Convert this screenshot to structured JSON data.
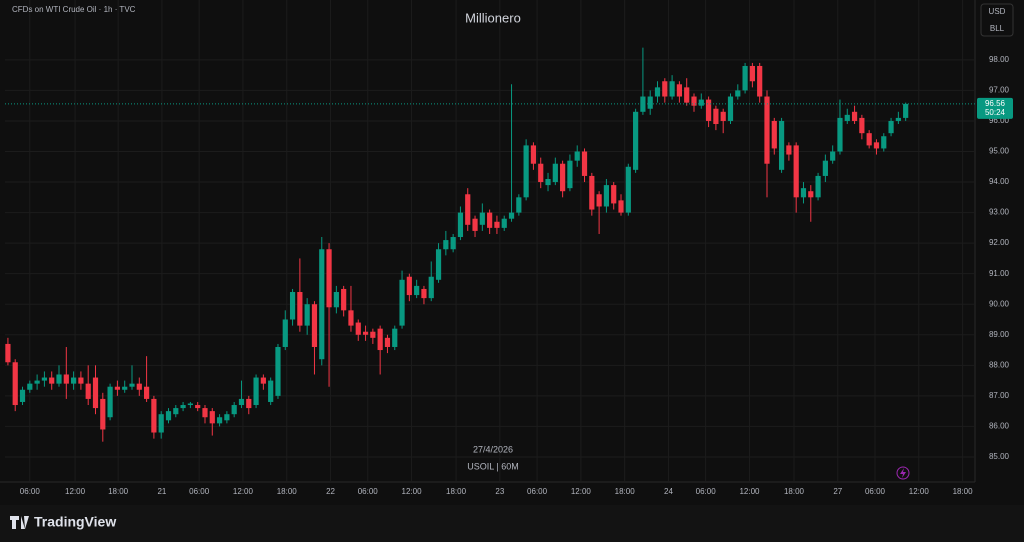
{
  "header": {
    "symbol_title": "CFDs on WTI Crude Oil · 1h · TVC",
    "watermark": "Millionero",
    "currency": "USD",
    "unit": "BLL",
    "date_label": "27/4/2026",
    "symbol_label": "USOIL | 60M",
    "brand": "TradingView"
  },
  "chart_data": {
    "type": "candlestick",
    "up_color": "#089981",
    "down_color": "#f23645",
    "grid": true,
    "open": [
      88.7,
      88.1,
      86.8,
      87.2,
      87.4,
      87.5,
      87.6,
      87.4,
      87.7,
      87.4,
      87.6,
      87.4,
      87.6,
      86.9,
      86.3,
      87.3,
      87.2,
      87.3,
      87.4,
      87.3,
      86.9,
      85.8,
      86.2,
      86.4,
      86.6,
      86.7,
      86.7,
      86.6,
      86.5,
      86.1,
      86.2,
      86.4,
      86.7,
      86.9,
      86.7,
      87.6,
      86.8,
      87.0,
      88.6,
      89.5,
      90.4,
      89.3,
      90.0,
      88.2,
      91.8,
      89.9,
      90.5,
      89.8,
      89.4,
      89.1,
      89.1,
      89.2,
      88.9,
      88.6,
      89.3,
      90.9,
      90.3,
      90.5,
      90.2,
      90.8,
      91.8,
      91.8,
      92.2,
      93.6,
      92.8,
      92.6,
      93.0,
      92.7,
      92.5,
      92.8,
      93.0,
      93.5,
      95.2,
      94.6,
      93.9,
      94.0,
      94.6,
      93.8,
      94.7,
      95.0,
      94.2,
      93.6,
      93.2,
      93.9,
      93.4,
      93.0,
      94.4,
      96.3,
      96.4,
      96.8,
      97.3,
      96.8,
      97.2,
      97.1,
      96.8,
      96.5,
      96.7,
      96.4,
      96.3,
      96.0,
      96.8,
      97.0,
      97.8,
      97.8,
      96.8,
      96.0,
      94.4,
      95.2,
      95.2,
      93.5,
      93.7,
      93.5,
      94.2,
      94.7,
      95.0,
      96.0,
      96.3,
      96.1,
      95.6,
      95.3,
      95.1,
      95.6,
      96.0,
      96.1
    ],
    "high": [
      88.9,
      88.2,
      87.3,
      87.5,
      87.7,
      87.8,
      87.8,
      88.0,
      88.6,
      87.8,
      87.8,
      88.0,
      88.0,
      87.1,
      87.4,
      87.5,
      87.5,
      88.0,
      87.6,
      88.3,
      87.0,
      86.5,
      86.6,
      86.7,
      86.8,
      86.8,
      86.8,
      86.7,
      86.6,
      86.4,
      86.5,
      86.8,
      87.5,
      87.0,
      87.7,
      87.7,
      87.6,
      88.7,
      89.8,
      90.5,
      91.5,
      90.2,
      90.1,
      92.2,
      92.0,
      90.6,
      90.6,
      90.6,
      89.5,
      89.3,
      89.2,
      89.3,
      89.0,
      89.3,
      91.1,
      91.0,
      90.8,
      90.6,
      91.4,
      92.0,
      92.4,
      92.3,
      93.2,
      93.8,
      92.9,
      93.3,
      93.1,
      92.9,
      92.9,
      97.2,
      93.6,
      95.4,
      95.3,
      94.8,
      94.3,
      94.8,
      94.7,
      94.9,
      95.2,
      95.1,
      94.3,
      93.7,
      94.1,
      94.0,
      93.6,
      94.6,
      96.4,
      98.4,
      97.0,
      97.3,
      97.4,
      97.5,
      97.3,
      97.4,
      96.9,
      96.9,
      96.8,
      96.5,
      96.4,
      96.9,
      97.2,
      97.9,
      97.9,
      97.9,
      97.0,
      96.1,
      96.1,
      95.3,
      95.3,
      94.0,
      93.9,
      94.3,
      94.9,
      95.2,
      96.7,
      96.4,
      96.5,
      96.2,
      95.7,
      95.4,
      95.6,
      96.1,
      96.3,
      96.6
    ],
    "low": [
      88.0,
      86.5,
      86.7,
      87.1,
      87.2,
      87.3,
      87.2,
      87.3,
      86.9,
      87.2,
      87.2,
      86.7,
      86.4,
      85.5,
      86.2,
      87.0,
      87.1,
      87.2,
      87.0,
      86.8,
      85.6,
      85.6,
      86.1,
      86.3,
      86.5,
      86.6,
      86.5,
      86.1,
      85.7,
      86.0,
      86.1,
      86.3,
      86.6,
      86.4,
      86.6,
      87.2,
      86.7,
      86.9,
      88.5,
      89.3,
      89.1,
      89.0,
      87.7,
      88.0,
      87.3,
      89.7,
      89.6,
      89.1,
      88.8,
      88.8,
      88.7,
      87.7,
      88.4,
      88.5,
      89.2,
      90.1,
      90.2,
      90.0,
      90.1,
      90.7,
      91.6,
      91.7,
      92.1,
      92.4,
      92.2,
      92.4,
      92.3,
      92.3,
      92.4,
      92.7,
      92.9,
      93.4,
      94.4,
      93.8,
      93.7,
      93.9,
      93.5,
      93.7,
      94.5,
      94.0,
      92.9,
      92.3,
      93.0,
      93.1,
      92.9,
      92.9,
      94.3,
      96.2,
      96.2,
      96.6,
      96.6,
      96.7,
      96.6,
      96.5,
      96.3,
      96.4,
      95.8,
      95.7,
      95.6,
      95.9,
      96.7,
      96.9,
      97.1,
      96.6,
      93.5,
      94.9,
      94.3,
      94.7,
      93.0,
      93.3,
      92.7,
      93.4,
      94.0,
      94.6,
      94.9,
      95.9,
      95.9,
      95.4,
      95.1,
      94.9,
      95.0,
      95.5,
      95.9,
      96.0
    ],
    "close": [
      88.1,
      86.7,
      87.2,
      87.4,
      87.5,
      87.6,
      87.4,
      87.7,
      87.4,
      87.6,
      87.4,
      86.9,
      86.6,
      85.9,
      87.3,
      87.2,
      87.3,
      87.4,
      87.2,
      86.9,
      85.8,
      86.4,
      86.5,
      86.6,
      86.7,
      86.75,
      86.6,
      86.3,
      86.1,
      86.3,
      86.4,
      86.7,
      86.9,
      86.6,
      87.6,
      87.4,
      87.5,
      88.6,
      89.5,
      90.4,
      89.3,
      90.0,
      88.6,
      91.8,
      89.9,
      90.4,
      89.8,
      89.3,
      89.0,
      89.0,
      88.9,
      88.5,
      88.6,
      89.2,
      90.8,
      90.3,
      90.6,
      90.2,
      90.9,
      91.8,
      92.1,
      92.2,
      93.0,
      92.6,
      92.4,
      93.0,
      92.5,
      92.5,
      92.8,
      93.0,
      93.5,
      95.2,
      94.6,
      94.0,
      94.1,
      94.6,
      93.7,
      94.7,
      95.0,
      94.2,
      93.1,
      93.2,
      93.9,
      93.3,
      93.0,
      94.5,
      96.3,
      96.8,
      96.8,
      97.1,
      96.8,
      97.3,
      96.8,
      96.6,
      96.5,
      96.7,
      96.0,
      95.9,
      96.0,
      96.8,
      97.0,
      97.8,
      97.3,
      96.8,
      94.6,
      95.1,
      96.0,
      94.9,
      93.5,
      93.8,
      93.5,
      94.2,
      94.7,
      95.0,
      96.1,
      96.2,
      96.0,
      95.6,
      95.2,
      95.1,
      95.5,
      96.0,
      96.1,
      96.56
    ],
    "last_price": {
      "value": 96.56,
      "label": "96.56"
    },
    "countdown": "50:24",
    "xlim": [
      -0.4,
      132.5
    ],
    "xticks": [
      {
        "value": 3,
        "label": "06:00"
      },
      {
        "value": 9.2,
        "label": "12:00"
      },
      {
        "value": 15.1,
        "label": "18:00"
      },
      {
        "value": 21.1,
        "label": "21"
      },
      {
        "value": 26.2,
        "label": "06:00"
      },
      {
        "value": 32.2,
        "label": "12:00"
      },
      {
        "value": 38.2,
        "label": "18:00"
      },
      {
        "value": 44.2,
        "label": "22"
      },
      {
        "value": 49.3,
        "label": "06:00"
      },
      {
        "value": 55.3,
        "label": "12:00"
      },
      {
        "value": 61.4,
        "label": "18:00"
      },
      {
        "value": 67.4,
        "label": "23"
      },
      {
        "value": 72.5,
        "label": "06:00"
      },
      {
        "value": 78.5,
        "label": "12:00"
      },
      {
        "value": 84.5,
        "label": "18:00"
      },
      {
        "value": 90.5,
        "label": "24"
      },
      {
        "value": 95.6,
        "label": "06:00"
      },
      {
        "value": 101.6,
        "label": "12:00"
      },
      {
        "value": 107.7,
        "label": "18:00"
      },
      {
        "value": 113.7,
        "label": "27"
      },
      {
        "value": 118.8,
        "label": "06:00"
      },
      {
        "value": 124.8,
        "label": "12:00"
      },
      {
        "value": 130.8,
        "label": "18:00"
      }
    ],
    "ylim": [
      84.18,
      99.96
    ],
    "yticks": [
      {
        "value": 85,
        "label": "85.00"
      },
      {
        "value": 86,
        "label": "86.00"
      },
      {
        "value": 87,
        "label": "87.00"
      },
      {
        "value": 88,
        "label": "88.00"
      },
      {
        "value": 89,
        "label": "89.00"
      },
      {
        "value": 90,
        "label": "90.00"
      },
      {
        "value": 91,
        "label": "91.00"
      },
      {
        "value": 92,
        "label": "92.00"
      },
      {
        "value": 93,
        "label": "93.00"
      },
      {
        "value": 94,
        "label": "94.00"
      },
      {
        "value": 95,
        "label": "95.00"
      },
      {
        "value": 96,
        "label": "96.00"
      },
      {
        "value": 97,
        "label": "97.00"
      },
      {
        "value": 98,
        "label": "98.00"
      }
    ]
  }
}
